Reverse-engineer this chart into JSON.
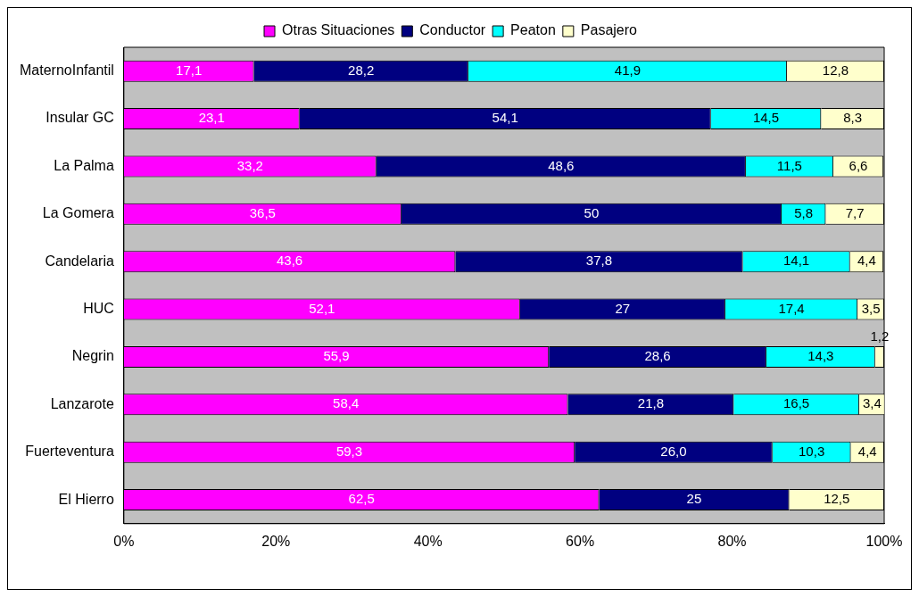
{
  "chart_data": {
    "type": "bar",
    "orientation": "horizontal",
    "stacked": true,
    "categories": [
      "MaternoInfantil",
      "Insular GC",
      "La Palma",
      "La Gomera",
      "Candelaria",
      "HUC",
      "Negrin",
      "Lanzarote",
      "Fuerteventura",
      "El Hierro"
    ],
    "series": [
      {
        "name": "Otras Situaciones",
        "color": "#ff00ff",
        "values": [
          17.1,
          23.1,
          33.2,
          36.5,
          43.6,
          52.1,
          55.9,
          58.4,
          59.3,
          62.5
        ],
        "value_labels": [
          "17,1",
          "23,1",
          "33,2",
          "36,5",
          "43,6",
          "52,1",
          "55,9",
          "58,4",
          "59,3",
          "62,5"
        ]
      },
      {
        "name": "Conductor",
        "color": "#000080",
        "values": [
          28.2,
          54.1,
          48.6,
          50,
          37.8,
          27,
          28.6,
          21.8,
          26.0,
          25
        ],
        "value_labels": [
          "28,2",
          "54,1",
          "48,6",
          "50",
          "37,8",
          "27",
          "28,6",
          "21,8",
          "26,0",
          "25"
        ]
      },
      {
        "name": "Peaton",
        "color": "#00ffff",
        "values": [
          41.9,
          14.5,
          11.5,
          5.8,
          14.1,
          17.4,
          14.3,
          16.5,
          10.3,
          null
        ],
        "value_labels": [
          "41,9",
          "14,5",
          "11,5",
          "5,8",
          "14,1",
          "17,4",
          "14,3",
          "16,5",
          "10,3",
          null
        ]
      },
      {
        "name": "Pasajero",
        "color": "#ffffcc",
        "values": [
          12.8,
          8.3,
          6.6,
          7.7,
          4.4,
          3.5,
          1.2,
          3.4,
          4.4,
          12.5
        ],
        "value_labels": [
          "12,8",
          "8,3",
          "6,6",
          "7,7",
          "4,4",
          "3,5",
          "1,2",
          "3,4",
          "4,4",
          "12,5"
        ]
      }
    ],
    "xlim": [
      0,
      100
    ],
    "xticks": [
      {
        "value": 0,
        "label": "0%"
      },
      {
        "value": 20,
        "label": "20%"
      },
      {
        "value": 40,
        "label": "40%"
      },
      {
        "value": 60,
        "label": "60%"
      },
      {
        "value": 80,
        "label": "80%"
      },
      {
        "value": 100,
        "label": "100%"
      }
    ],
    "grid": false,
    "legend": "top"
  }
}
